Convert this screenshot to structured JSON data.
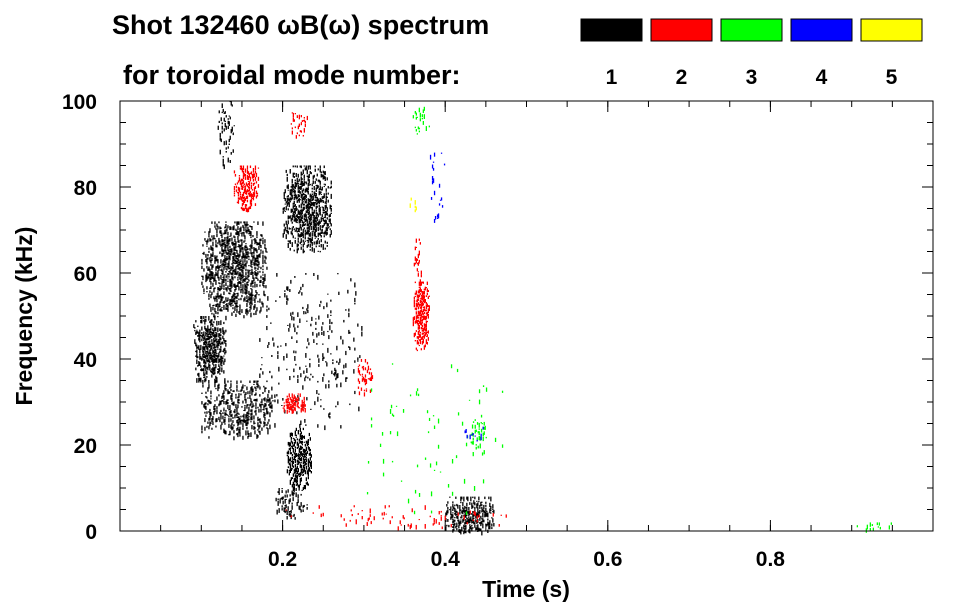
{
  "chart_data": {
    "type": "heatmap",
    "title_line1": "Shot 132460 ωB(ω) spectrum",
    "title_line2": "for toroidal mode number:",
    "xlabel": "Time (s)",
    "ylabel": "Frequency (kHz)",
    "xlim": [
      0.0,
      1.0
    ],
    "ylim": [
      0,
      100
    ],
    "x_ticks": [
      0.2,
      0.4,
      0.6,
      0.8
    ],
    "x_tick_labels": [
      "0.2",
      "0.4",
      "0.6",
      "0.8"
    ],
    "x_minor_step": 0.05,
    "y_ticks": [
      0,
      20,
      40,
      60,
      80,
      100
    ],
    "y_tick_labels": [
      "0",
      "20",
      "40",
      "60",
      "80",
      "100"
    ],
    "y_minor_step": 5,
    "legend": [
      {
        "n": "1",
        "color": "#000000"
      },
      {
        "n": "2",
        "color": "#ff0000"
      },
      {
        "n": "3",
        "color": "#00ff00"
      },
      {
        "n": "4",
        "color": "#0000ff"
      },
      {
        "n": "5",
        "color": "#ffff00"
      }
    ],
    "regions": [
      {
        "mode": 1,
        "t": [
          0.09,
          0.13
        ],
        "f": [
          35,
          50
        ],
        "density": 0.85,
        "seed": 11
      },
      {
        "mode": 1,
        "t": [
          0.1,
          0.18
        ],
        "f": [
          50,
          72
        ],
        "density": 0.7,
        "seed": 12
      },
      {
        "mode": 1,
        "t": [
          0.1,
          0.19
        ],
        "f": [
          22,
          35
        ],
        "density": 0.45,
        "seed": 13
      },
      {
        "mode": 1,
        "t": [
          0.12,
          0.14
        ],
        "f": [
          85,
          100
        ],
        "density": 0.3,
        "seed": 14
      },
      {
        "mode": 1,
        "t": [
          0.2,
          0.26
        ],
        "f": [
          65,
          85
        ],
        "density": 0.75,
        "seed": 15
      },
      {
        "mode": 1,
        "t": [
          0.205,
          0.235
        ],
        "f": [
          10,
          24
        ],
        "density": 0.8,
        "seed": 16
      },
      {
        "mode": 1,
        "t": [
          0.19,
          0.23
        ],
        "f": [
          3,
          10
        ],
        "density": 0.35,
        "seed": 17
      },
      {
        "mode": 1,
        "t": [
          0.4,
          0.46
        ],
        "f": [
          0,
          8
        ],
        "density": 0.75,
        "seed": 18
      },
      {
        "mode": 1,
        "t": [
          0.17,
          0.3
        ],
        "f": [
          24,
          60
        ],
        "density": 0.08,
        "seed": 19
      },
      {
        "mode": 2,
        "t": [
          0.14,
          0.17
        ],
        "f": [
          75,
          85
        ],
        "density": 0.75,
        "seed": 21
      },
      {
        "mode": 2,
        "t": [
          0.2,
          0.23
        ],
        "f": [
          28,
          32
        ],
        "density": 0.85,
        "seed": 22
      },
      {
        "mode": 2,
        "t": [
          0.36,
          0.38
        ],
        "f": [
          42,
          58
        ],
        "density": 0.85,
        "seed": 23
      },
      {
        "mode": 2,
        "t": [
          0.36,
          0.37
        ],
        "f": [
          58,
          68
        ],
        "density": 0.35,
        "seed": 24
      },
      {
        "mode": 2,
        "t": [
          0.29,
          0.31
        ],
        "f": [
          32,
          40
        ],
        "density": 0.45,
        "seed": 25
      },
      {
        "mode": 2,
        "t": [
          0.2,
          0.48
        ],
        "f": [
          1,
          6
        ],
        "density": 0.08,
        "seed": 26
      },
      {
        "mode": 2,
        "t": [
          0.21,
          0.23
        ],
        "f": [
          92,
          98
        ],
        "density": 0.4,
        "seed": 27
      },
      {
        "mode": 3,
        "t": [
          0.3,
          0.47
        ],
        "f": [
          4,
          40
        ],
        "density": 0.02,
        "seed": 31
      },
      {
        "mode": 3,
        "t": [
          0.43,
          0.45
        ],
        "f": [
          18,
          26
        ],
        "density": 0.35,
        "seed": 32
      },
      {
        "mode": 3,
        "t": [
          0.36,
          0.38
        ],
        "f": [
          92,
          99
        ],
        "density": 0.2,
        "seed": 33
      },
      {
        "mode": 3,
        "t": [
          0.9,
          0.96
        ],
        "f": [
          0.5,
          2
        ],
        "density": 0.25,
        "seed": 34
      },
      {
        "mode": 4,
        "t": [
          0.38,
          0.4
        ],
        "f": [
          72,
          88
        ],
        "density": 0.12,
        "seed": 41
      },
      {
        "mode": 4,
        "t": [
          0.42,
          0.45
        ],
        "f": [
          20,
          25
        ],
        "density": 0.15,
        "seed": 42
      },
      {
        "mode": 5,
        "t": [
          0.355,
          0.365
        ],
        "f": [
          74,
          78
        ],
        "density": 0.35,
        "seed": 51
      }
    ]
  }
}
